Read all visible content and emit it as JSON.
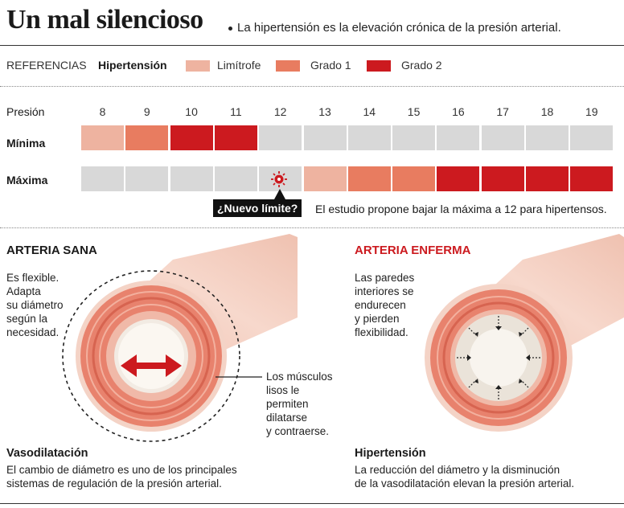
{
  "header": {
    "title": "Un mal silencioso",
    "subtitle": "La hipertensión es la elevación crónica de la presión arterial."
  },
  "legend": {
    "label": "REFERENCIAS",
    "name": "Hipertensión",
    "items": [
      {
        "label": "Limítrofe",
        "color": "#eeb3a0"
      },
      {
        "label": "Grado 1",
        "color": "#e87c60"
      },
      {
        "label": "Grado 2",
        "color": "#cc1a1f"
      }
    ]
  },
  "chart_data": {
    "type": "table",
    "xlabel": "Presión",
    "x": [
      8,
      9,
      10,
      11,
      12,
      13,
      14,
      15,
      16,
      17,
      18,
      19
    ],
    "series": [
      {
        "name": "Mínima",
        "values": [
          "Limítrofe",
          "Grado 1",
          "Grado 2",
          "Grado 2",
          "",
          "",
          "",
          "",
          "",
          "",
          "",
          ""
        ]
      },
      {
        "name": "Máxima",
        "values": [
          "",
          "",
          "",
          "",
          "",
          "Limítrofe",
          "Grado 1",
          "Grado 1",
          "Grado 2",
          "Grado 2",
          "Grado 2",
          "Grado 2"
        ]
      }
    ],
    "empty_color": "#d8d8d8",
    "marker_at": 12
  },
  "callout": {
    "label": "¿Nuevo límite?",
    "note": "El estudio propone bajar la máxima a 12 para hipertensos."
  },
  "healthy": {
    "title": "ARTERIA SANA",
    "description": [
      "Es flexible.",
      "Adapta",
      "su diámetro",
      "según la",
      "necesidad."
    ],
    "muscle_note": [
      "Los músculos",
      "lisos le",
      "permiten",
      "dilatarse",
      "y contraerse."
    ],
    "caption_title": "Vasodilatación",
    "caption_text": [
      "El cambio de diámetro es uno de los principales",
      "sistemas de regulación de la presión arterial."
    ]
  },
  "sick": {
    "title": "ARTERIA ENFERMA",
    "title_color": "#cc1a1f",
    "description": [
      "Las paredes",
      "interiores se",
      "endurecen",
      "y pierden",
      "flexibilidad."
    ],
    "caption_title": "Hipertensión",
    "caption_text": [
      "La reducción del diámetro y la disminución",
      "de la vasodilatación elevan la presión arterial."
    ]
  }
}
